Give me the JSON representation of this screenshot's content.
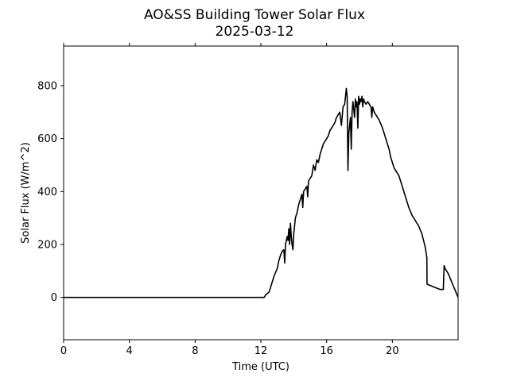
{
  "chart_data": {
    "type": "line",
    "title": "AO&SS Building Tower Solar Flux",
    "subtitle": "2025-03-12",
    "xlabel": "Time (UTC)",
    "ylabel": "Solar Flux (W/m^2)",
    "xlim": [
      0,
      24
    ],
    "ylim": [
      -160,
      950
    ],
    "xticks": [
      0,
      4,
      8,
      12,
      16,
      20
    ],
    "yticks": [
      0,
      200,
      400,
      600,
      800
    ],
    "grid": false,
    "legend": "none",
    "line_color": "#000000",
    "series": [
      {
        "x": [
          0,
          12.2,
          12.3,
          12.5,
          12.6,
          12.7,
          12.8,
          12.9,
          13.0,
          13.1,
          13.2,
          13.3,
          13.4,
          13.45,
          13.5,
          13.6,
          13.65,
          13.7,
          13.75,
          13.8,
          13.85,
          13.9,
          13.95,
          14.0,
          14.05,
          14.1,
          14.15,
          14.2,
          14.3,
          14.4,
          14.5,
          14.55,
          14.6,
          14.7,
          14.8,
          14.85,
          14.9,
          15.0,
          15.1,
          15.2,
          15.3,
          15.4,
          15.5,
          15.6,
          15.7,
          15.8,
          15.9,
          16.0,
          16.1,
          16.2,
          16.3,
          16.4,
          16.5,
          16.6,
          16.7,
          16.8,
          16.9,
          17.0,
          17.1,
          17.2,
          17.25,
          17.3,
          17.35,
          17.4,
          17.45,
          17.5,
          17.55,
          17.6,
          17.65,
          17.7,
          17.75,
          17.8,
          17.85,
          17.9,
          17.95,
          18.0,
          18.05,
          18.1,
          18.15,
          18.2,
          18.25,
          18.3,
          18.4,
          18.5,
          18.6,
          18.7,
          18.75,
          18.8,
          18.9,
          19.0,
          19.2,
          19.4,
          19.6,
          19.8,
          19.9,
          20.0,
          20.1,
          20.2,
          20.3,
          20.4,
          20.5,
          20.6,
          20.7,
          20.8,
          20.9,
          21.0,
          21.2,
          21.4,
          21.6,
          21.8,
          22.0,
          22.1,
          22.11,
          22.3,
          22.5,
          22.7,
          22.9,
          23.1,
          23.15,
          23.2,
          23.4,
          23.6,
          23.8,
          24.0
        ],
        "values": [
          0,
          0,
          10,
          20,
          40,
          60,
          80,
          95,
          110,
          140,
          160,
          175,
          180,
          130,
          200,
          230,
          215,
          260,
          200,
          280,
          230,
          200,
          180,
          240,
          270,
          300,
          310,
          320,
          350,
          370,
          390,
          340,
          400,
          410,
          420,
          380,
          440,
          450,
          460,
          500,
          480,
          520,
          510,
          540,
          560,
          580,
          590,
          600,
          610,
          630,
          640,
          650,
          660,
          680,
          690,
          700,
          650,
          720,
          730,
          790,
          760,
          480,
          620,
          650,
          680,
          560,
          700,
          740,
          710,
          680,
          750,
          720,
          740,
          640,
          760,
          730,
          750,
          740,
          760,
          720,
          750,
          740,
          730,
          740,
          730,
          720,
          680,
          720,
          700,
          690,
          670,
          640,
          600,
          560,
          530,
          510,
          490,
          480,
          470,
          460,
          440,
          420,
          400,
          380,
          360,
          340,
          310,
          290,
          270,
          240,
          190,
          150,
          50,
          45,
          40,
          35,
          30,
          30,
          120,
          110,
          90,
          60,
          30,
          0
        ]
      }
    ]
  }
}
